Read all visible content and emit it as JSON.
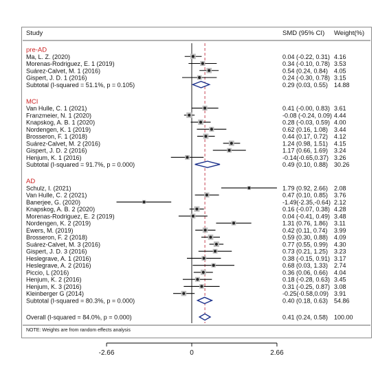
{
  "chart_data": {
    "type": "forest",
    "header": {
      "study": "Study",
      "effect": "SMD (95% CI)",
      "weight": "Weight(%)"
    },
    "xaxis": {
      "ticks": [
        -2.66,
        0,
        2.66
      ],
      "tick_labels": [
        "-2.66",
        "0",
        "2.66"
      ],
      "range": [
        -2.66,
        2.66
      ]
    },
    "null_line": 0,
    "overall_line": 0.41,
    "note": "NOTE: Weights are from random effects analysis",
    "groups": [
      {
        "name": "pre-AD",
        "studies": [
          {
            "label": "Ma, L. Z.  (2020)",
            "smd": 0.04,
            "lo": -0.22,
            "hi": 0.31,
            "ci_text": "0.04 (-0.22, 0.31)",
            "weight": "4.16"
          },
          {
            "label": "Morenas-Rodriguez, E. 1 (2019)",
            "smd": 0.34,
            "lo": -0.1,
            "hi": 0.78,
            "ci_text": "0.34 (-0.10, 0.78)",
            "weight": "3.53"
          },
          {
            "label": "Suárez-Calvet, M. 1 (2016)",
            "smd": 0.54,
            "lo": 0.24,
            "hi": 0.84,
            "ci_text": "0.54 (0.24, 0.84)",
            "weight": "4.05"
          },
          {
            "label": "Gispert, J. D. 1 (2016)",
            "smd": 0.24,
            "lo": -0.3,
            "hi": 0.78,
            "ci_text": "0.24 (-0.30, 0.78)",
            "weight": "3.15"
          }
        ],
        "subtotal": {
          "label": "Subtotal  (I-squared = 51.1%, p = 0.105)",
          "smd": 0.29,
          "lo": 0.03,
          "hi": 0.55,
          "ci_text": "0.29 (0.03, 0.55)",
          "weight": "14.88"
        }
      },
      {
        "name": "MCI",
        "studies": [
          {
            "label": "Van Hulle, C. 1 (2021)",
            "smd": 0.41,
            "lo": -0.0,
            "hi": 0.83,
            "ci_text": "0.41 (-0.00, 0.83)",
            "weight": "3.61"
          },
          {
            "label": "Franzmeier, N. 1 (2020)",
            "smd": -0.08,
            "lo": -0.24,
            "hi": 0.09,
            "ci_text": "-0.08 (-0.24, 0.09)",
            "weight": "4.44"
          },
          {
            "label": "Knapskog, A. B. 1 (2020)",
            "smd": 0.28,
            "lo": -0.03,
            "hi": 0.59,
            "ci_text": "0.28 (-0.03, 0.59)",
            "weight": "4.00"
          },
          {
            "label": "Nordengen, K. 1 (2019)",
            "smd": 0.62,
            "lo": 0.16,
            "hi": 1.08,
            "ci_text": "0.62 (0.16, 1.08)",
            "weight": "3.44"
          },
          {
            "label": "Brosseron, F. 1 (2018)",
            "smd": 0.44,
            "lo": 0.17,
            "hi": 0.72,
            "ci_text": "0.44 (0.17, 0.72)",
            "weight": "4.12"
          },
          {
            "label": "Suárez-Calvet, M. 2 (2016)",
            "smd": 1.24,
            "lo": 0.98,
            "hi": 1.51,
            "ci_text": "1.24 (0.98, 1.51)",
            "weight": "4.15"
          },
          {
            "label": "Gispert, J. D. 2 (2016)",
            "smd": 1.17,
            "lo": 0.66,
            "hi": 1.69,
            "ci_text": "1.17 (0.66, 1.69)",
            "weight": "3.24"
          },
          {
            "label": "Henjum, K. 1 (2016)",
            "smd": -0.14,
            "lo": -0.65,
            "hi": 0.37,
            "ci_text": "-0.14(-0.65,0.37)",
            "weight": "3.26"
          }
        ],
        "subtotal": {
          "label": "Subtotal  (I-squared = 91.7%, p = 0.000)",
          "smd": 0.49,
          "lo": 0.1,
          "hi": 0.88,
          "ci_text": "0.49 (0.10, 0.88)",
          "weight": "30.26"
        }
      },
      {
        "name": "AD",
        "studies": [
          {
            "label": "Schulz, I. (2021)",
            "smd": 1.79,
            "lo": 0.92,
            "hi": 2.66,
            "ci_text": "1.79 (0.92, 2.66)",
            "weight": "2.08"
          },
          {
            "label": "Van Hulle, C. 2 (2021)",
            "smd": 0.47,
            "lo": 0.1,
            "hi": 0.85,
            "ci_text": "0.47 (0.10, 0.85)",
            "weight": "3.76"
          },
          {
            "label": "Banerjee, G. (2020)",
            "smd": -1.49,
            "lo": -2.35,
            "hi": -0.64,
            "ci_text": "-1.49(-2.35,-0.64)",
            "weight": "2.12"
          },
          {
            "label": "Knapskog, A. B. 2 (2020)",
            "smd": 0.16,
            "lo": -0.07,
            "hi": 0.38,
            "ci_text": "0.16 (-0.07, 0.38)",
            "weight": "4.28"
          },
          {
            "label": "Morenas-Rodriguez, E. 2 (2019)",
            "smd": 0.04,
            "lo": -0.41,
            "hi": 0.49,
            "ci_text": "0.04 (-0.41, 0.49)",
            "weight": "3.48"
          },
          {
            "label": "Nordengen, K. 2 (2019)",
            "smd": 1.31,
            "lo": 0.76,
            "hi": 1.86,
            "ci_text": "1.31 (0.76, 1.86)",
            "weight": "3.11"
          },
          {
            "label": "Ewers, M.  (2019)",
            "smd": 0.42,
            "lo": 0.11,
            "hi": 0.74,
            "ci_text": "0.42 (0.11, 0.74)",
            "weight": "3.99"
          },
          {
            "label": "Brosseron, F. 2 (2018)",
            "smd": 0.59,
            "lo": 0.3,
            "hi": 0.88,
            "ci_text": "0.59 (0.30, 0.88)",
            "weight": "4.09"
          },
          {
            "label": "Suárez-Calvet, M. 3 (2016)",
            "smd": 0.77,
            "lo": 0.55,
            "hi": 0.99,
            "ci_text": "0.77 (0.55, 0.99)",
            "weight": "4.30"
          },
          {
            "label": "Gispert, J. D. 3 (2016)",
            "smd": 0.73,
            "lo": 0.21,
            "hi": 1.25,
            "ci_text": "0.73 (0.21, 1.25)",
            "weight": "3.23"
          },
          {
            "label": "Heslegrave, A. 1 (2016)",
            "smd": 0.38,
            "lo": -0.15,
            "hi": 0.91,
            "ci_text": "0.38 (-0.15, 0.91)",
            "weight": "3.17"
          },
          {
            "label": "Heslegrave, A. 2 (2016)",
            "smd": 0.68,
            "lo": 0.03,
            "hi": 1.33,
            "ci_text": "0.68 (0.03, 1.33)",
            "weight": "2.74"
          },
          {
            "label": "Piccio, L (2016)",
            "smd": 0.36,
            "lo": 0.06,
            "hi": 0.66,
            "ci_text": "0.36 (0.06, 0.66)",
            "weight": "4.04"
          },
          {
            "label": "Henjum, K. 2 (2016)",
            "smd": 0.18,
            "lo": -0.28,
            "hi": 0.63,
            "ci_text": "0.18 (-0.28, 0.63)",
            "weight": "3.45"
          },
          {
            "label": "Henjum, K. 3 (2016)",
            "smd": 0.31,
            "lo": -0.25,
            "hi": 0.87,
            "ci_text": "0.31 (-0.25, 0.87)",
            "weight": "3.08"
          },
          {
            "label": "Kleinberger G (2014)",
            "smd": -0.25,
            "lo": -0.58,
            "hi": 0.09,
            "ci_text": "-0.25(-0.58,0.09)",
            "weight": "3.91"
          }
        ],
        "subtotal": {
          "label": "Subtotal  (I-squared = 80.3%, p = 0.000)",
          "smd": 0.4,
          "lo": 0.18,
          "hi": 0.63,
          "ci_text": "0.40 (0.18, 0.63)",
          "weight": "54.86"
        }
      }
    ],
    "overall": {
      "label": "Overall  (I-squared = 84.0%, p = 0.000)",
      "smd": 0.41,
      "lo": 0.24,
      "hi": 0.58,
      "ci_text": "0.41 (0.24, 0.58)",
      "weight": "100.00"
    },
    "colors": {
      "group_label": "#cc2222",
      "diamond": "#1a2f8a",
      "null_line": "#000000",
      "overall_line": "#c03040",
      "marker": "#222222"
    }
  }
}
